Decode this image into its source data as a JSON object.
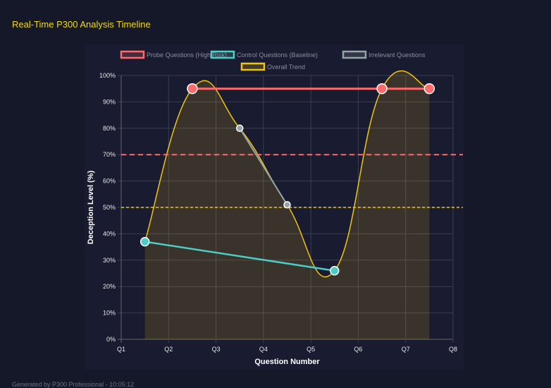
{
  "header": {
    "title": "Real-Time P300 Analysis Timeline"
  },
  "footer": {
    "text": "Generated by P300 Professional - 10:05:12"
  },
  "chart_data": {
    "type": "line",
    "xlabel": "Question Number",
    "ylabel": "Deception Level (%)",
    "x_ticks": [
      "Q1",
      "Q2",
      "Q3",
      "Q4",
      "Q5",
      "Q6",
      "Q7",
      "Q8"
    ],
    "y_ticks": [
      "0%",
      "10%",
      "20%",
      "30%",
      "40%",
      "50%",
      "60%",
      "70%",
      "80%",
      "90%",
      "100%"
    ],
    "ylim": [
      0,
      100
    ],
    "grid": true,
    "legend_position": "top",
    "x_positions_note_free": null,
    "series": [
      {
        "name": "Probe Questions (High Risk)",
        "color": "#ff6b6b",
        "x": [
          "Q2",
          "Q6",
          "Q7"
        ],
        "values": [
          95,
          95,
          95
        ]
      },
      {
        "name": "Control Questions (Baseline)",
        "color": "#4ecdc4",
        "x": [
          "Q1",
          "Q5"
        ],
        "values": [
          37,
          26
        ]
      },
      {
        "name": "Irrelevant Questions",
        "color": "#95a5a6",
        "x": [
          "Q3",
          "Q4"
        ],
        "values": [
          80,
          51
        ]
      },
      {
        "name": "Overall Trend",
        "color": "#f1c40f",
        "x": [
          "Q1",
          "Q2",
          "Q3",
          "Q4",
          "Q5",
          "Q6",
          "Q7"
        ],
        "values": [
          37,
          95,
          80,
          51,
          26,
          95,
          95
        ],
        "fill": true
      }
    ],
    "thresholds": [
      {
        "value": 70,
        "color": "#ff6b6b"
      },
      {
        "value": 50,
        "color": "#f1c40f"
      }
    ]
  }
}
